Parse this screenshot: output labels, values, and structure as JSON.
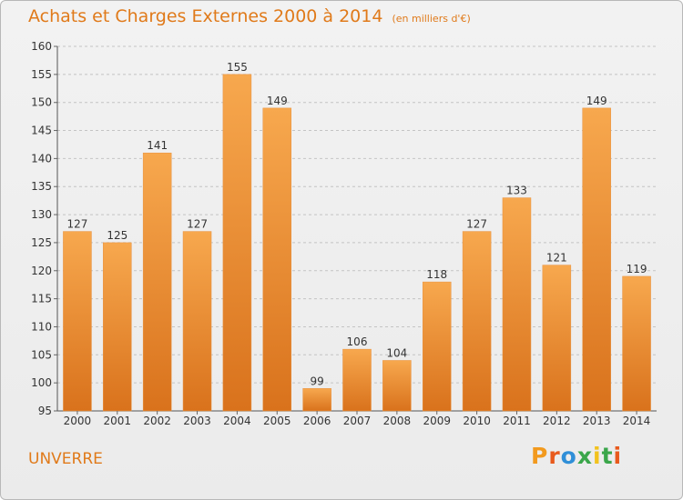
{
  "header": {
    "title": "Achats et Charges Externes 2000 à 2014",
    "subtitle": "(en milliers d'€)"
  },
  "footer": {
    "place": "UNVERRE",
    "logo": "Proxiti"
  },
  "colors": {
    "bar_light": "#f7a84e",
    "bar_dark": "#d9721c",
    "title": "#e07a1a",
    "logo_letters": [
      "#f29a1e",
      "#e85a1c",
      "#2f8fd8",
      "#3aa64a",
      "#f2c21e",
      "#3aa64a",
      "#e85a1c"
    ]
  },
  "chart_data": {
    "type": "bar",
    "title": "Achats et Charges Externes 2000 à 2014",
    "subtitle": "(en milliers d'€)",
    "xlabel": "",
    "ylabel": "",
    "categories": [
      "2000",
      "2001",
      "2002",
      "2003",
      "2004",
      "2005",
      "2006",
      "2007",
      "2008",
      "2009",
      "2010",
      "2011",
      "2012",
      "2013",
      "2014"
    ],
    "values": [
      127,
      125,
      141,
      127,
      155,
      149,
      99,
      106,
      104,
      118,
      127,
      133,
      121,
      149,
      119
    ],
    "ylim": [
      95,
      160
    ],
    "yticks": [
      95,
      100,
      105,
      110,
      115,
      120,
      125,
      130,
      135,
      140,
      145,
      150,
      155,
      160
    ],
    "grid": "horizontal-dashed",
    "data_labels": true
  }
}
